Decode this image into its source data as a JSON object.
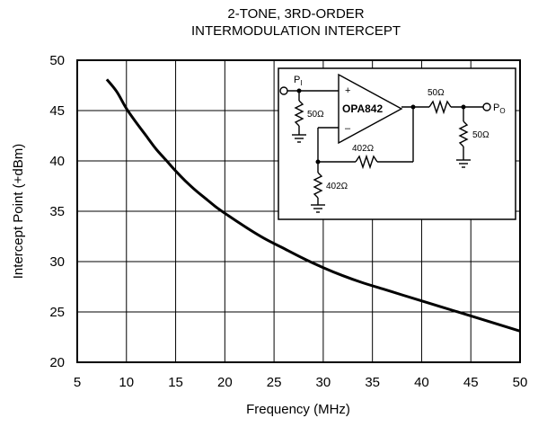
{
  "chart_data": {
    "type": "line",
    "title": [
      "2-TONE, 3RD-ORDER",
      "INTERMODULATION INTERCEPT"
    ],
    "xlabel": "Frequency (MHz)",
    "ylabel": "Intercept Point (+dBm)",
    "xlim": [
      5,
      50
    ],
    "ylim": [
      20,
      50
    ],
    "xticks": [
      5,
      10,
      15,
      20,
      25,
      30,
      35,
      40,
      45,
      50
    ],
    "yticks": [
      20,
      25,
      30,
      35,
      40,
      45,
      50
    ],
    "grid": true,
    "series": [
      {
        "x": [
          8,
          9,
          10,
          11,
          12,
          13,
          14,
          15,
          16,
          17,
          18,
          19,
          20,
          22,
          24,
          26,
          28,
          30,
          32,
          34,
          36,
          38,
          40,
          42,
          44,
          46,
          48,
          50
        ],
        "y": [
          48.1,
          46.9,
          45.2,
          43.8,
          42.5,
          41.2,
          40.1,
          39.0,
          38.0,
          37.1,
          36.3,
          35.5,
          34.8,
          33.5,
          32.3,
          31.3,
          30.3,
          29.4,
          28.6,
          27.9,
          27.3,
          26.7,
          26.1,
          25.5,
          24.9,
          24.3,
          23.7,
          23.1
        ]
      }
    ]
  },
  "inset": {
    "input_label": "P",
    "input_sub": "I",
    "output_label": "P",
    "output_sub": "O",
    "amp_label": "OPA842",
    "plus": "+",
    "minus": "–",
    "r_in": "50Ω",
    "r_series": "50Ω",
    "r_load": "50Ω",
    "r_feedback": "402Ω",
    "r_gain": "402Ω"
  }
}
